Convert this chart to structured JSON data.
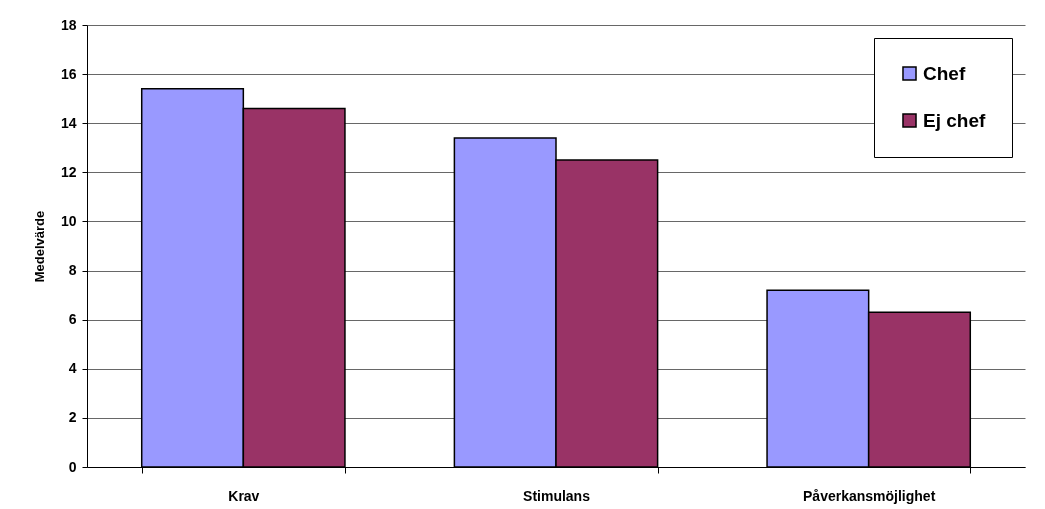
{
  "chart_data": {
    "type": "bar",
    "ylabel": "Medelvärde",
    "categories": [
      "Krav",
      "Stimulans",
      "Påverkansmöjlighet"
    ],
    "series": [
      {
        "name": "Chef",
        "color": "#9999ff",
        "values": [
          15.4,
          13.4,
          7.2
        ]
      },
      {
        "name": "Ej chef",
        "color": "#993366",
        "values": [
          14.6,
          12.5,
          6.3
        ]
      }
    ],
    "ylim": [
      0,
      18
    ],
    "yticks": [
      0,
      2,
      4,
      6,
      8,
      10,
      12,
      14,
      16,
      18
    ],
    "grid": "y",
    "legend": "top right"
  }
}
